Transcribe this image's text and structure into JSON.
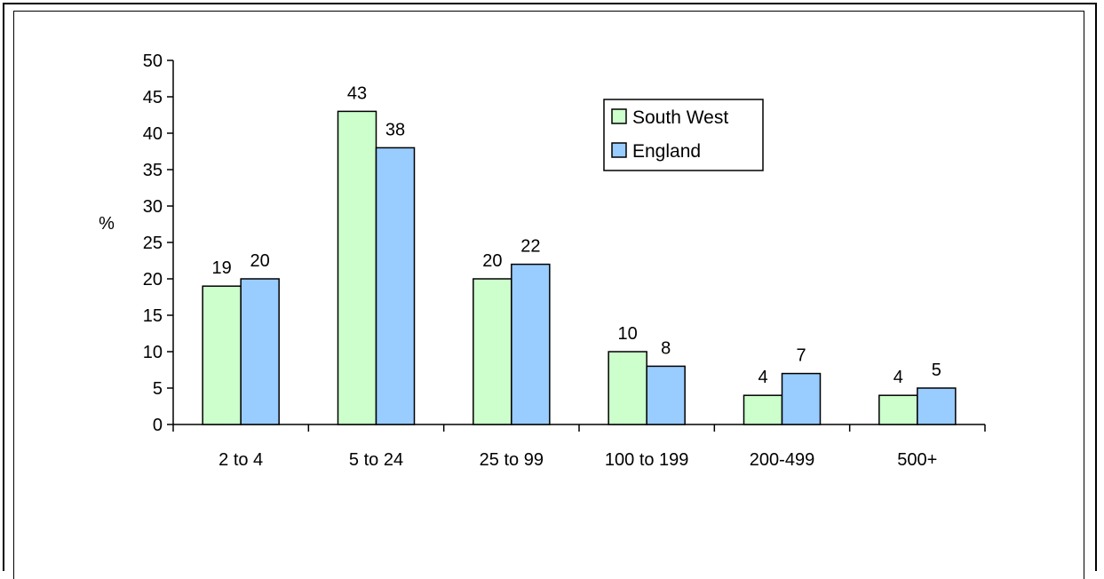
{
  "page": {
    "heading_partial": ""
  },
  "chart_data": {
    "type": "bar",
    "title": "",
    "ylabel": "%",
    "xlabel": "",
    "ylim": [
      0,
      50
    ],
    "yticks": [
      0,
      5,
      10,
      15,
      20,
      25,
      30,
      35,
      40,
      45,
      50
    ],
    "categories": [
      "2 to 4",
      "5 to 24",
      "25 to 99",
      "100 to 199",
      "200-499",
      "500+"
    ],
    "series": [
      {
        "name": "South West",
        "color": "#ccffcc",
        "values": [
          19,
          43,
          20,
          10,
          4,
          4
        ]
      },
      {
        "name": "England",
        "color": "#99ccff",
        "values": [
          20,
          38,
          22,
          8,
          7,
          5
        ]
      }
    ],
    "data_labels": true,
    "grid": false,
    "legend_position": "top-right"
  }
}
